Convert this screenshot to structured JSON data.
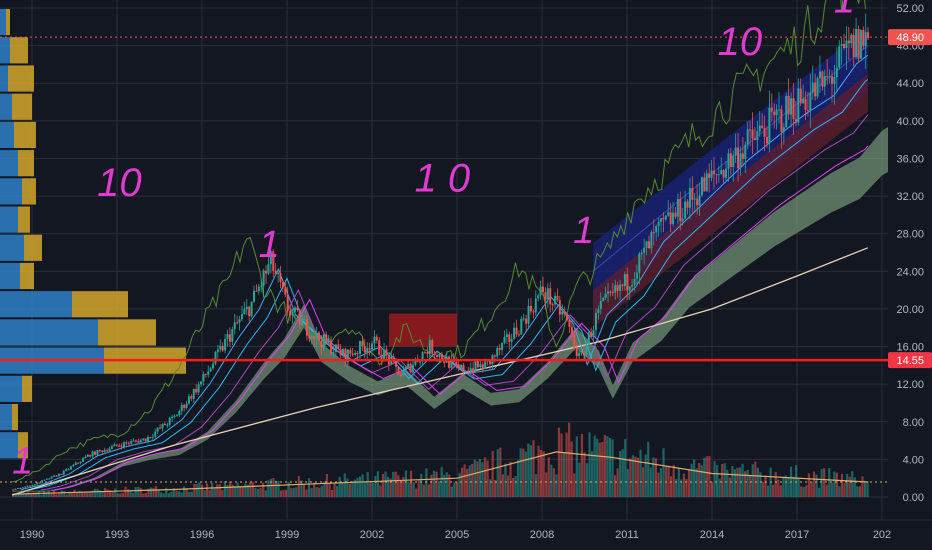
{
  "chart_data": {
    "type": "line",
    "symbol_note": "",
    "x_axis": {
      "ticks": [
        "1990",
        "1993",
        "1996",
        "1999",
        "2002",
        "2005",
        "2008",
        "2011",
        "2014",
        "2017",
        "202"
      ],
      "range": [
        1989.3,
        2020.0
      ]
    },
    "y_axis": {
      "ticks": [
        "52.00",
        "48.00",
        "44.00",
        "40.00",
        "36.00",
        "32.00",
        "28.00",
        "24.00",
        "20.00",
        "16.00",
        "12.00",
        "8.00",
        "4.00",
        "0.00"
      ],
      "range": [
        -2.0,
        53.0
      ],
      "scale": "linear"
    },
    "price_labels": [
      {
        "label": "48.90",
        "value": 48.9,
        "color": "#f05350"
      },
      {
        "label": "14.55",
        "value": 14.55,
        "color": "#f23645"
      }
    ],
    "horizontal_line": {
      "value": 14.55,
      "color": "#ff1a1a"
    },
    "price_series": [
      {
        "x": 1989.3,
        "y": 0.8
      },
      {
        "x": 1990.0,
        "y": 1.3
      },
      {
        "x": 1991.0,
        "y": 2.5
      },
      {
        "x": 1992.0,
        "y": 4.5
      },
      {
        "x": 1993.0,
        "y": 5.5
      },
      {
        "x": 1994.0,
        "y": 6.2
      },
      {
        "x": 1995.0,
        "y": 8.5
      },
      {
        "x": 1996.0,
        "y": 12.5
      },
      {
        "x": 1997.0,
        "y": 17.5
      },
      {
        "x": 1997.7,
        "y": 20.5
      },
      {
        "x": 1998.4,
        "y": 25.0
      },
      {
        "x": 1999.0,
        "y": 20.0
      },
      {
        "x": 2000.0,
        "y": 17.0
      },
      {
        "x": 2001.0,
        "y": 15.0
      },
      {
        "x": 2002.0,
        "y": 16.5
      },
      {
        "x": 2003.0,
        "y": 13.0
      },
      {
        "x": 2004.0,
        "y": 16.0
      },
      {
        "x": 2005.0,
        "y": 13.5
      },
      {
        "x": 2006.0,
        "y": 14.0
      },
      {
        "x": 2007.0,
        "y": 17.5
      },
      {
        "x": 2008.0,
        "y": 22.0
      },
      {
        "x": 2008.8,
        "y": 19.0
      },
      {
        "x": 2009.3,
        "y": 14.5
      },
      {
        "x": 2010.0,
        "y": 20.0
      },
      {
        "x": 2011.0,
        "y": 23.0
      },
      {
        "x": 2012.0,
        "y": 28.0
      },
      {
        "x": 2013.0,
        "y": 31.0
      },
      {
        "x": 2014.0,
        "y": 34.0
      },
      {
        "x": 2015.0,
        "y": 37.0
      },
      {
        "x": 2016.0,
        "y": 39.5
      },
      {
        "x": 2017.0,
        "y": 42.0
      },
      {
        "x": 2018.0,
        "y": 44.0
      },
      {
        "x": 2018.8,
        "y": 47.5
      },
      {
        "x": 2019.4,
        "y": 48.9
      }
    ],
    "long_ma_series": [
      {
        "x": 1989.3,
        "y": 0.2
      },
      {
        "x": 1995.0,
        "y": 5.5
      },
      {
        "x": 2000.0,
        "y": 9.5
      },
      {
        "x": 2005.0,
        "y": 13.0
      },
      {
        "x": 2010.0,
        "y": 16.5
      },
      {
        "x": 2014.0,
        "y": 20.0
      },
      {
        "x": 2017.0,
        "y": 23.5
      },
      {
        "x": 2019.5,
        "y": 26.5
      }
    ],
    "volume_avg_series": [
      {
        "x": 1989.3,
        "y": 0.3
      },
      {
        "x": 1995.0,
        "y": 0.8
      },
      {
        "x": 2000.0,
        "y": 1.4
      },
      {
        "x": 2005.0,
        "y": 2.0
      },
      {
        "x": 2008.5,
        "y": 4.8
      },
      {
        "x": 2010.5,
        "y": 4.2
      },
      {
        "x": 2014.0,
        "y": 2.5
      },
      {
        "x": 2019.5,
        "y": 1.6
      }
    ],
    "volume_bars_note": "",
    "annotations": [
      {
        "text": "10",
        "x": 1992.3,
        "y": 32.0,
        "color": "#e23ad0"
      },
      {
        "text": "1 0",
        "x": 2003.5,
        "y": 32.5,
        "color": "#e23ad0"
      },
      {
        "text": "10",
        "x": 2014.2,
        "y": 47.0,
        "color": "#e23ad0"
      },
      {
        "text": "1",
        "x": 1998.0,
        "y": 25.5,
        "color": "#e23ad0"
      },
      {
        "text": "1",
        "x": 2009.1,
        "y": 27.0,
        "color": "#e23ad0"
      },
      {
        "text": "1",
        "x": 2018.3,
        "y": 51.5,
        "color": "#e23ad0"
      },
      {
        "text": "1",
        "x": 1989.3,
        "y": 2.5,
        "color": "#e23ad0"
      }
    ],
    "grid": true,
    "colors": {
      "background": "#131722",
      "grid": "#2a2e39",
      "candle_up": "#26a69a",
      "candle_down": "#ef5350",
      "annotation": "#e23ad0",
      "ma_long": "#e8d3b6",
      "cloud": "#8fbc8f",
      "channel_blue": "#1a237e",
      "channel_red": "#5b1e2e",
      "volume_profile_blue": "#2f80c8",
      "volume_profile_yellow": "#d4a62a"
    }
  }
}
